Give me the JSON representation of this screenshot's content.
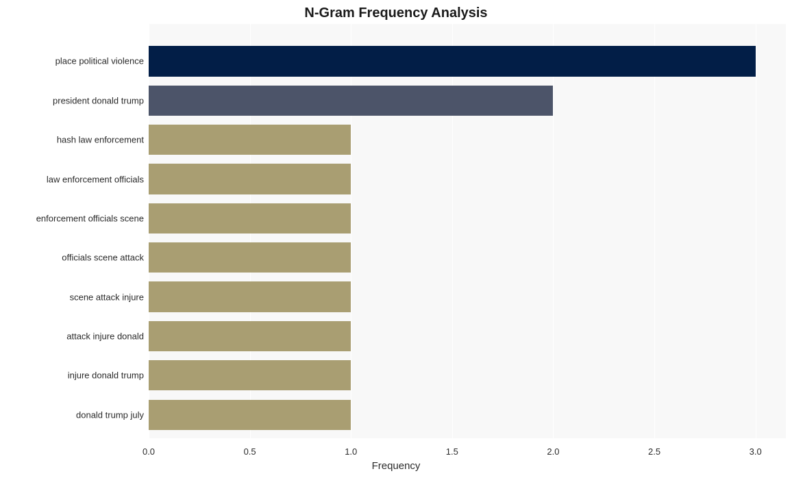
{
  "chart": {
    "type": "bar-horizontal",
    "title": "N-Gram Frequency Analysis",
    "title_fontsize": 20,
    "title_fontweight": "bold",
    "x_axis_title": "Frequency",
    "x_axis_title_fontsize": 15,
    "y_tick_fontsize": 13,
    "x_tick_fontsize": 13,
    "background_color": "#ffffff",
    "plot_background_color": "#f8f8f8",
    "grid_color": "#ffffff",
    "xlim": [
      0,
      3.15
    ],
    "x_ticks": [
      0.0,
      0.5,
      1.0,
      1.5,
      2.0,
      2.5,
      3.0
    ],
    "x_tick_labels": [
      "0.0",
      "0.5",
      "1.0",
      "1.5",
      "2.0",
      "2.5",
      "3.0"
    ],
    "bar_width_ratio": 0.77,
    "categories": [
      "place political violence",
      "president donald trump",
      "hash law enforcement",
      "law enforcement officials",
      "enforcement officials scene",
      "officials scene attack",
      "scene attack injure",
      "attack injure donald",
      "injure donald trump",
      "donald trump july"
    ],
    "values": [
      3,
      2,
      1,
      1,
      1,
      1,
      1,
      1,
      1,
      1
    ],
    "bar_colors": [
      "#021e47",
      "#4c5469",
      "#a99e72",
      "#a99e72",
      "#a99e72",
      "#a99e72",
      "#a99e72",
      "#a99e72",
      "#a99e72",
      "#a99e72"
    ]
  }
}
